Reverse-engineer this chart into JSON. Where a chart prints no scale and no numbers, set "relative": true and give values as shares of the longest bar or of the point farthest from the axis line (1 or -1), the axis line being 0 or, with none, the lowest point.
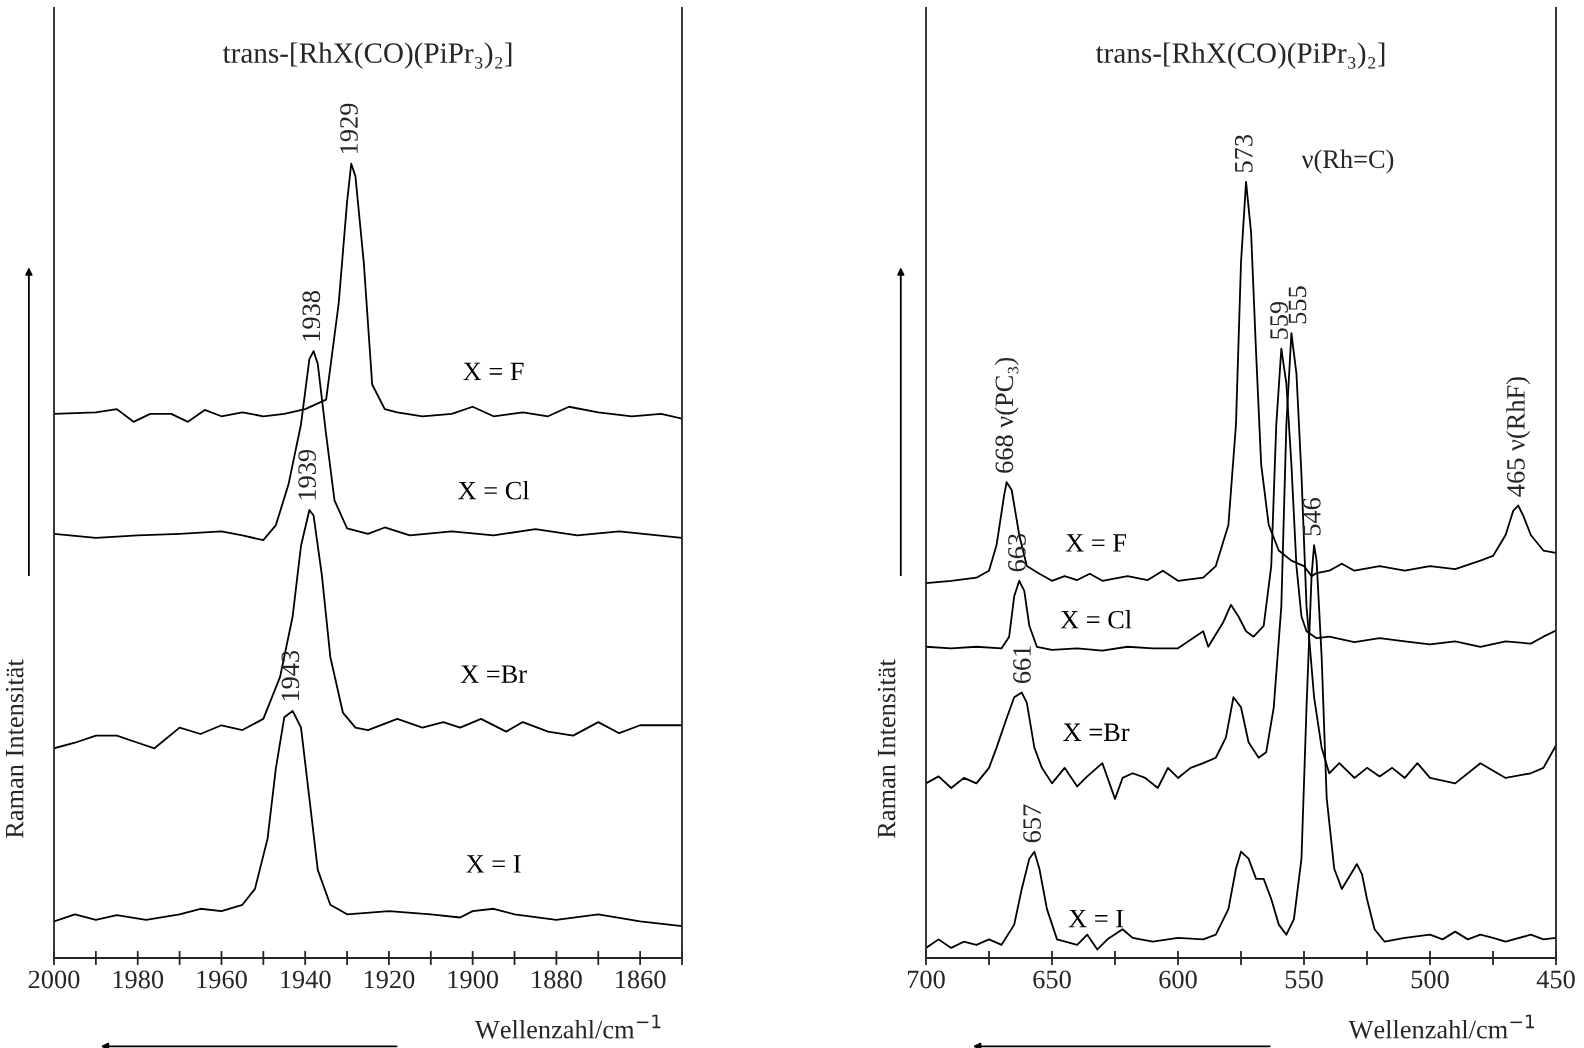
{
  "chart_data": [
    {
      "type": "line",
      "relative": true,
      "title": "trans-[RhX(CO)(PiPr₃)₂]",
      "xlabel": "Wellenzahl/cm$^{−1}$",
      "ylabel": "Raman Intensität",
      "xlim": [
        2000,
        1850
      ],
      "xticks": [
        2000,
        {
          "value": 1990,
          "label": null
        },
        1980,
        {
          "value": 1970,
          "label": null
        },
        1960,
        {
          "value": 1950,
          "label": null
        },
        1940,
        {
          "value": 1930,
          "label": null
        },
        1920,
        {
          "value": 1910,
          "label": null
        },
        1900,
        {
          "value": 1890,
          "label": null
        },
        1880,
        {
          "value": 1870,
          "label": null
        },
        1860,
        {
          "value": 1850,
          "label": null
        }
      ],
      "tick_labels": "x",
      "grid": false,
      "legend": false,
      "marker": "none",
      "line_style": "solid",
      "series": [
        {
          "name": "X = F",
          "color": "#000000",
          "x": [
            2000,
            1990,
            1985,
            1981,
            1977,
            1972,
            1968,
            1964,
            1960,
            1955,
            1950,
            1945,
            1940,
            1935,
            1932,
            1930,
            1929,
            1928,
            1926,
            1924,
            1921,
            1918,
            1912,
            1905,
            1900,
            1895,
            1888,
            1882,
            1877,
            1870,
            1862,
            1855,
            1850
          ],
          "values": [
            0.685,
            0.687,
            0.691,
            0.675,
            0.685,
            0.685,
            0.675,
            0.69,
            0.682,
            0.687,
            0.682,
            0.685,
            0.691,
            0.703,
            0.824,
            0.952,
            1.0,
            0.984,
            0.875,
            0.722,
            0.691,
            0.687,
            0.682,
            0.685,
            0.694,
            0.682,
            0.687,
            0.682,
            0.694,
            0.687,
            0.682,
            0.685,
            0.679
          ]
        },
        {
          "name": "X = Cl",
          "color": "#000000",
          "x": [
            2000,
            1990,
            1980,
            1970,
            1960,
            1955,
            1950,
            1947,
            1944,
            1941,
            1939,
            1938,
            1937,
            1935,
            1933,
            1930,
            1925,
            1921,
            1915,
            1905,
            1895,
            1885,
            1875,
            1865,
            1850
          ],
          "values": [
            0.534,
            0.529,
            0.532,
            0.534,
            0.537,
            0.532,
            0.526,
            0.545,
            0.596,
            0.672,
            0.754,
            0.764,
            0.748,
            0.659,
            0.576,
            0.541,
            0.534,
            0.542,
            0.532,
            0.537,
            0.532,
            0.54,
            0.532,
            0.537,
            0.529
          ]
        },
        {
          "name": "X =Br",
          "color": "#000000",
          "x": [
            2000,
            1995,
            1990,
            1985,
            1980,
            1976,
            1970,
            1965,
            1960,
            1955,
            1950,
            1946,
            1943,
            1941,
            1939,
            1938,
            1936,
            1934,
            1931,
            1928,
            1925,
            1918,
            1912,
            1907,
            1903,
            1898,
            1892,
            1888,
            1882,
            1876,
            1870,
            1865,
            1860,
            1850
          ],
          "values": [
            0.264,
            0.271,
            0.28,
            0.28,
            0.271,
            0.264,
            0.29,
            0.282,
            0.293,
            0.287,
            0.301,
            0.354,
            0.43,
            0.519,
            0.564,
            0.557,
            0.481,
            0.379,
            0.309,
            0.29,
            0.287,
            0.301,
            0.29,
            0.297,
            0.29,
            0.301,
            0.285,
            0.297,
            0.285,
            0.28,
            0.297,
            0.283,
            0.293,
            0.293
          ]
        },
        {
          "name": "X = I",
          "color": "#000000",
          "x": [
            2000,
            1995,
            1990,
            1985,
            1978,
            1970,
            1965,
            1960,
            1955,
            1952,
            1949,
            1947,
            1945,
            1943,
            1941,
            1939,
            1937,
            1934,
            1930,
            1920,
            1910,
            1903,
            1900,
            1895,
            1890,
            1880,
            1870,
            1860,
            1850
          ],
          "values": [
            0.046,
            0.055,
            0.048,
            0.054,
            0.048,
            0.055,
            0.062,
            0.059,
            0.067,
            0.087,
            0.15,
            0.239,
            0.303,
            0.311,
            0.29,
            0.201,
            0.111,
            0.067,
            0.055,
            0.059,
            0.055,
            0.051,
            0.059,
            0.062,
            0.055,
            0.048,
            0.055,
            0.046,
            0.04
          ]
        }
      ],
      "annotations": [
        {
          "text": "1929",
          "x": 1929,
          "y": 1.0
        },
        {
          "text": "1938",
          "x": 1938,
          "y": 0.764
        },
        {
          "text": "1939",
          "x": 1939,
          "y": 0.564
        },
        {
          "text": "1943",
          "x": 1943,
          "y": 0.311
        }
      ]
    },
    {
      "type": "line",
      "relative": true,
      "title": "trans-[RhX(CO)(PiPr₃)₂]",
      "xlabel": "Wellenzahl/cm$^{−1}$",
      "ylabel": "Raman Intensität",
      "xlim": [
        700,
        450
      ],
      "xticks": [
        700,
        {
          "value": 675,
          "label": null
        },
        650,
        {
          "value": 625,
          "label": null
        },
        600,
        {
          "value": 575,
          "label": null
        },
        550,
        {
          "value": 525,
          "label": null
        },
        500,
        {
          "value": 475,
          "label": null
        },
        450
      ],
      "tick_labels": "x",
      "grid": false,
      "legend": false,
      "marker": "none",
      "line_style": "solid",
      "series": [
        {
          "name": "X = F",
          "color": "#000000",
          "x": [
            700,
            690,
            680,
            675,
            672,
            669,
            668,
            666,
            663,
            660,
            655,
            650,
            645,
            640,
            635,
            630,
            620,
            612,
            606,
            600,
            590,
            585,
            580,
            577,
            575,
            573,
            571,
            569,
            567,
            564,
            560,
            555,
            550,
            547,
            545,
            540,
            535,
            530,
            520,
            510,
            500,
            490,
            480,
            475,
            470,
            467,
            465,
            463,
            460,
            455,
            450
          ],
          "values": [
            0.483,
            0.486,
            0.49,
            0.499,
            0.532,
            0.596,
            0.613,
            0.603,
            0.545,
            0.505,
            0.495,
            0.486,
            0.492,
            0.487,
            0.495,
            0.486,
            0.492,
            0.487,
            0.499,
            0.486,
            0.49,
            0.505,
            0.558,
            0.687,
            0.896,
            1.0,
            0.935,
            0.779,
            0.636,
            0.558,
            0.525,
            0.512,
            0.505,
            0.492,
            0.496,
            0.499,
            0.508,
            0.499,
            0.505,
            0.499,
            0.505,
            0.501,
            0.512,
            0.518,
            0.545,
            0.576,
            0.583,
            0.57,
            0.545,
            0.525,
            0.522
          ]
        },
        {
          "name": "X = Cl",
          "color": "#000000",
          "x": [
            700,
            690,
            680,
            670,
            667,
            665,
            663,
            661,
            659,
            656,
            650,
            640,
            630,
            620,
            610,
            600,
            590,
            588,
            582,
            579,
            576,
            573,
            570,
            566,
            563,
            561,
            559,
            557,
            555,
            553,
            551,
            549,
            545,
            540,
            530,
            520,
            510,
            500,
            490,
            480,
            470,
            460,
            455,
            450
          ],
          "values": [
            0.401,
            0.399,
            0.401,
            0.399,
            0.414,
            0.466,
            0.486,
            0.473,
            0.428,
            0.401,
            0.397,
            0.399,
            0.396,
            0.401,
            0.399,
            0.399,
            0.421,
            0.401,
            0.433,
            0.455,
            0.44,
            0.421,
            0.414,
            0.428,
            0.505,
            0.687,
            0.785,
            0.74,
            0.636,
            0.505,
            0.44,
            0.421,
            0.412,
            0.414,
            0.407,
            0.412,
            0.408,
            0.404,
            0.408,
            0.401,
            0.408,
            0.405,
            0.414,
            0.422
          ]
        },
        {
          "name": "X =Br",
          "color": "#000000",
          "x": [
            700,
            695,
            690,
            685,
            680,
            675,
            672,
            668,
            665,
            662,
            660,
            657,
            654,
            650,
            645,
            640,
            636,
            630,
            625,
            622,
            618,
            613,
            608,
            604,
            600,
            595,
            590,
            585,
            581,
            578,
            575,
            572,
            568,
            565,
            562,
            559,
            557,
            555,
            553,
            551,
            549,
            546,
            543,
            540,
            536,
            530,
            525,
            520,
            515,
            510,
            505,
            500,
            490,
            480,
            470,
            460,
            455,
            450
          ],
          "values": [
            0.225,
            0.234,
            0.219,
            0.232,
            0.225,
            0.245,
            0.271,
            0.309,
            0.336,
            0.342,
            0.329,
            0.271,
            0.245,
            0.225,
            0.245,
            0.221,
            0.234,
            0.251,
            0.205,
            0.232,
            0.238,
            0.232,
            0.219,
            0.245,
            0.232,
            0.245,
            0.251,
            0.258,
            0.284,
            0.336,
            0.323,
            0.278,
            0.258,
            0.265,
            0.323,
            0.453,
            0.687,
            0.805,
            0.753,
            0.622,
            0.453,
            0.336,
            0.271,
            0.238,
            0.251,
            0.232,
            0.245,
            0.234,
            0.245,
            0.232,
            0.251,
            0.232,
            0.225,
            0.251,
            0.232,
            0.238,
            0.245,
            0.274
          ]
        },
        {
          "name": "X = I",
          "color": "#000000",
          "x": [
            700,
            695,
            690,
            685,
            680,
            675,
            670,
            665,
            662,
            659,
            657,
            655,
            652,
            648,
            640,
            636,
            632,
            628,
            622,
            618,
            610,
            600,
            590,
            585,
            580,
            577,
            575,
            572,
            569,
            566,
            563,
            560,
            557,
            554,
            551,
            549,
            547,
            546,
            545,
            543,
            541,
            538,
            535,
            532,
            529,
            527,
            525,
            522,
            518,
            510,
            500,
            495,
            490,
            485,
            480,
            475,
            470,
            460,
            455,
            450
          ],
          "values": [
            0.013,
            0.024,
            0.013,
            0.021,
            0.017,
            0.024,
            0.017,
            0.043,
            0.089,
            0.128,
            0.137,
            0.115,
            0.063,
            0.024,
            0.017,
            0.03,
            0.011,
            0.024,
            0.037,
            0.026,
            0.021,
            0.026,
            0.024,
            0.03,
            0.063,
            0.115,
            0.137,
            0.128,
            0.102,
            0.102,
            0.076,
            0.043,
            0.03,
            0.05,
            0.128,
            0.323,
            0.492,
            0.532,
            0.512,
            0.388,
            0.206,
            0.115,
            0.089,
            0.105,
            0.121,
            0.108,
            0.076,
            0.037,
            0.021,
            0.026,
            0.03,
            0.024,
            0.034,
            0.024,
            0.03,
            0.026,
            0.021,
            0.03,
            0.024,
            0.026
          ]
        }
      ],
      "annotations": [
        {
          "text": "573",
          "x": 573,
          "y": 1.0
        },
        {
          "text": "ν(Rh=C)",
          "x": 573,
          "y": 1.0
        },
        {
          "text": "559",
          "x": 559,
          "y": 0.785
        },
        {
          "text": "555",
          "x": 555,
          "y": 0.805
        },
        {
          "text": "546",
          "x": 546,
          "y": 0.532
        },
        {
          "text": "668 ν(PC₃)",
          "x": 668,
          "y": 0.613
        },
        {
          "text": "663",
          "x": 663,
          "y": 0.486
        },
        {
          "text": "661",
          "x": 661,
          "y": 0.342
        },
        {
          "text": "657",
          "x": 657,
          "y": 0.137
        },
        {
          "text": "465 ν(RhF)",
          "x": 465,
          "y": 0.583
        }
      ]
    }
  ]
}
